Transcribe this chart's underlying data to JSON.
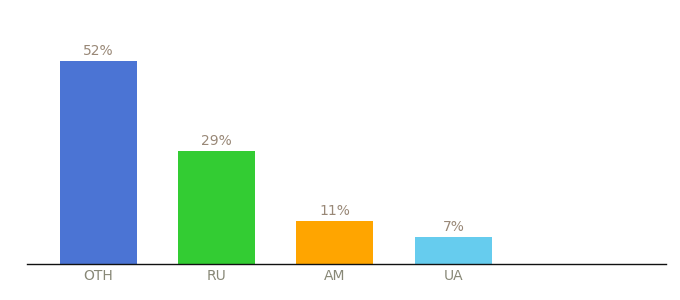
{
  "categories": [
    "OTH",
    "RU",
    "AM",
    "UA"
  ],
  "values": [
    52,
    29,
    11,
    7
  ],
  "labels": [
    "52%",
    "29%",
    "11%",
    "7%"
  ],
  "bar_colors": [
    "#4B74D4",
    "#33CC33",
    "#FFA500",
    "#66CCEE"
  ],
  "ylim": [
    0,
    60
  ],
  "bar_width": 0.65,
  "background_color": "#ffffff",
  "label_color": "#998877",
  "label_fontsize": 10,
  "tick_fontsize": 10,
  "tick_color": "#888877"
}
